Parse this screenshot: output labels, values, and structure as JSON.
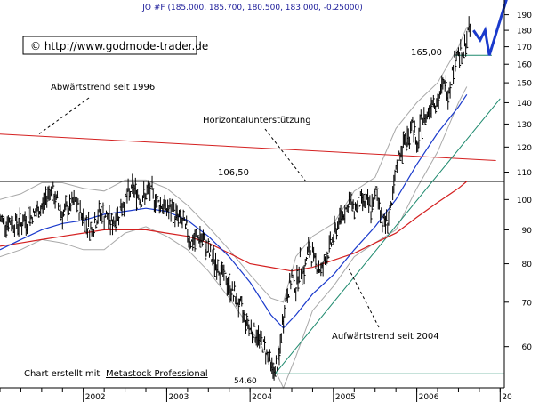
{
  "chart_data": {
    "type": "line",
    "subtitle": "JO #F (185.000, 185.700, 180.500, 183.000, -0.25000)",
    "copyright": "© http://www.godmode-trader.de",
    "footer_prefix": "Chart erstellt mit",
    "footer_link": "Metastock Professional",
    "x_ticks": [
      "2002",
      "2003",
      "2004",
      "2005",
      "2006",
      "20"
    ],
    "y_ticks": [
      60,
      70,
      80,
      90,
      100,
      110,
      120,
      130,
      140,
      150,
      160,
      170,
      180,
      190
    ],
    "ylim": [
      52,
      200
    ],
    "log_scale": true,
    "colors": {
      "subtitle": "#1a1a99",
      "bollinger": "#a8a8a8",
      "sma_short": "#1a3acc",
      "sma_long": "#d42020",
      "resistance_line": "#d42020",
      "uptrend_line": "#1e8a6e",
      "forecast": "#1a3acc",
      "price": "#000000"
    },
    "annotations": {
      "downtrend_label": "Abwärtstrend seit 1996",
      "horizontal_support_label": "Horizontalunterstützung",
      "uptrend_label": "Aufwärtstrend seit 2004",
      "level_106": "106,50",
      "level_165": "165,00",
      "level_low": "54,60"
    },
    "levels": {
      "horizontal_support": 106.5,
      "target_support": 165.0,
      "low": 54.6
    },
    "series": [
      {
        "values": [
          [
            2001.0,
            93
          ],
          [
            2001.25,
            92
          ],
          [
            2001.5,
            97
          ],
          [
            2001.6,
            104
          ],
          [
            2001.75,
            95
          ],
          [
            2001.9,
            99
          ],
          [
            2002.0,
            94
          ],
          [
            2002.1,
            90
          ],
          [
            2002.2,
            96
          ],
          [
            2002.35,
            92
          ],
          [
            2002.5,
            100
          ],
          [
            2002.6,
            104
          ],
          [
            2002.7,
            100
          ],
          [
            2002.8,
            103
          ],
          [
            2002.9,
            99
          ],
          [
            2003.0,
            97
          ],
          [
            2003.1,
            95
          ],
          [
            2003.2,
            92
          ],
          [
            2003.3,
            86
          ],
          [
            2003.4,
            88
          ],
          [
            2003.5,
            83
          ],
          [
            2003.6,
            80
          ],
          [
            2003.7,
            76
          ],
          [
            2003.8,
            72
          ],
          [
            2003.9,
            68
          ],
          [
            2004.0,
            64
          ],
          [
            2004.1,
            62
          ],
          [
            2004.2,
            59
          ],
          [
            2004.25,
            56
          ],
          [
            2004.3,
            55
          ],
          [
            2004.35,
            58
          ],
          [
            2004.42,
            70
          ],
          [
            2004.5,
            76
          ],
          [
            2004.55,
            74
          ],
          [
            2004.6,
            80
          ],
          [
            2004.65,
            78
          ],
          [
            2004.7,
            84
          ],
          [
            2004.78,
            81
          ],
          [
            2004.85,
            78
          ],
          [
            2004.92,
            82
          ],
          [
            2005.0,
            88
          ],
          [
            2005.1,
            95
          ],
          [
            2005.2,
            99
          ],
          [
            2005.25,
            97
          ],
          [
            2005.35,
            100
          ],
          [
            2005.45,
            97
          ],
          [
            2005.52,
            103
          ],
          [
            2005.58,
            94
          ],
          [
            2005.62,
            92
          ],
          [
            2005.7,
            97
          ],
          [
            2005.76,
            112
          ],
          [
            2005.82,
            120
          ],
          [
            2005.9,
            124
          ],
          [
            2005.95,
            132
          ],
          [
            2006.0,
            118
          ],
          [
            2006.05,
            130
          ],
          [
            2006.12,
            134
          ],
          [
            2006.2,
            143
          ],
          [
            2006.25,
            139
          ],
          [
            2006.32,
            150
          ],
          [
            2006.38,
            145
          ],
          [
            2006.45,
            162
          ],
          [
            2006.5,
            168
          ],
          [
            2006.55,
            162
          ],
          [
            2006.6,
            176
          ],
          [
            2006.65,
            183
          ]
        ]
      },
      {
        "name": "sma_short",
        "values": [
          [
            2001.0,
            84
          ],
          [
            2001.25,
            87
          ],
          [
            2001.5,
            90
          ],
          [
            2001.75,
            92
          ],
          [
            2002.0,
            93
          ],
          [
            2002.25,
            95
          ],
          [
            2002.5,
            96
          ],
          [
            2002.75,
            97
          ],
          [
            2003.0,
            96
          ],
          [
            2003.25,
            93
          ],
          [
            2003.5,
            88
          ],
          [
            2003.75,
            82
          ],
          [
            2004.0,
            75
          ],
          [
            2004.25,
            67
          ],
          [
            2004.4,
            64
          ],
          [
            2004.55,
            67
          ],
          [
            2004.75,
            72
          ],
          [
            2005.0,
            77
          ],
          [
            2005.25,
            84
          ],
          [
            2005.5,
            91
          ],
          [
            2005.75,
            100
          ],
          [
            2006.0,
            113
          ],
          [
            2006.25,
            126
          ],
          [
            2006.5,
            138
          ],
          [
            2006.6,
            144
          ]
        ]
      },
      {
        "name": "sma_long",
        "values": [
          [
            2001.0,
            85
          ],
          [
            2001.25,
            86
          ],
          [
            2001.5,
            87
          ],
          [
            2001.75,
            88
          ],
          [
            2002.0,
            89
          ],
          [
            2002.25,
            90
          ],
          [
            2002.5,
            90
          ],
          [
            2002.75,
            90
          ],
          [
            2003.0,
            89
          ],
          [
            2003.25,
            88
          ],
          [
            2003.5,
            86
          ],
          [
            2003.75,
            83
          ],
          [
            2004.0,
            80
          ],
          [
            2004.25,
            79
          ],
          [
            2004.5,
            78
          ],
          [
            2004.75,
            79
          ],
          [
            2005.0,
            81
          ],
          [
            2005.25,
            83
          ],
          [
            2005.5,
            86
          ],
          [
            2005.75,
            89
          ],
          [
            2006.0,
            94
          ],
          [
            2006.25,
            99
          ],
          [
            2006.5,
            104
          ],
          [
            2006.6,
            106.5
          ]
        ]
      },
      {
        "name": "bollinger_upper",
        "values": [
          [
            2001.0,
            100
          ],
          [
            2001.25,
            102
          ],
          [
            2001.5,
            106
          ],
          [
            2001.75,
            106
          ],
          [
            2002.0,
            104
          ],
          [
            2002.25,
            103
          ],
          [
            2002.5,
            107
          ],
          [
            2002.75,
            107
          ],
          [
            2003.0,
            104
          ],
          [
            2003.25,
            98
          ],
          [
            2003.5,
            91
          ],
          [
            2003.75,
            84
          ],
          [
            2004.0,
            77
          ],
          [
            2004.25,
            71
          ],
          [
            2004.4,
            70
          ],
          [
            2004.55,
            82
          ],
          [
            2004.75,
            88
          ],
          [
            2005.0,
            92
          ],
          [
            2005.25,
            103
          ],
          [
            2005.5,
            108
          ],
          [
            2005.75,
            128
          ],
          [
            2006.0,
            140
          ],
          [
            2006.25,
            150
          ],
          [
            2006.5,
            170
          ],
          [
            2006.6,
            182
          ]
        ]
      },
      {
        "name": "bollinger_lower",
        "values": [
          [
            2001.0,
            82
          ],
          [
            2001.25,
            84
          ],
          [
            2001.5,
            87
          ],
          [
            2001.75,
            86
          ],
          [
            2002.0,
            84
          ],
          [
            2002.25,
            84
          ],
          [
            2002.5,
            89
          ],
          [
            2002.75,
            91
          ],
          [
            2003.0,
            88
          ],
          [
            2003.25,
            84
          ],
          [
            2003.5,
            78
          ],
          [
            2003.75,
            71
          ],
          [
            2004.0,
            64
          ],
          [
            2004.25,
            57
          ],
          [
            2004.4,
            52
          ],
          [
            2004.55,
            58
          ],
          [
            2004.75,
            68
          ],
          [
            2005.0,
            74
          ],
          [
            2005.25,
            82
          ],
          [
            2005.5,
            86
          ],
          [
            2005.75,
            90
          ],
          [
            2006.0,
            104
          ],
          [
            2006.25,
            118
          ],
          [
            2006.5,
            140
          ],
          [
            2006.6,
            148
          ]
        ]
      },
      {
        "name": "resistance_line",
        "values": [
          [
            2001.0,
            125.5
          ],
          [
            2006.95,
            114.5
          ]
        ]
      },
      {
        "name": "uptrend_line",
        "values": [
          [
            2004.3,
            54.6
          ],
          [
            2007.0,
            142
          ]
        ]
      },
      {
        "name": "forecast",
        "values": [
          [
            2006.68,
            180
          ],
          [
            2006.76,
            174
          ],
          [
            2006.82,
            180
          ],
          [
            2006.87,
            165
          ],
          [
            2007.1,
            205
          ]
        ]
      }
    ]
  }
}
